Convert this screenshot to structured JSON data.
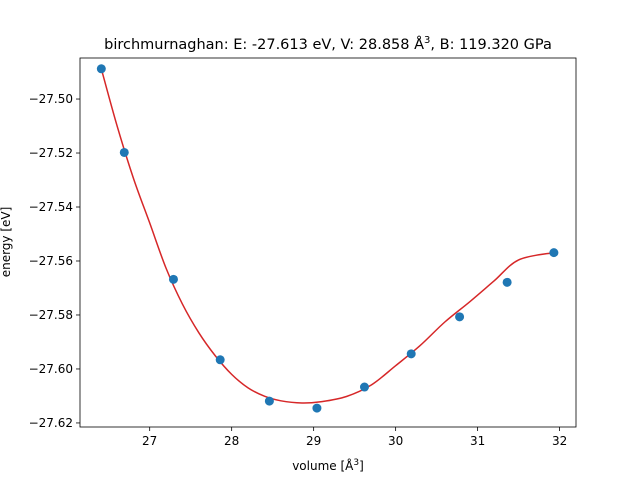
{
  "chart_data": {
    "type": "scatter",
    "title_parts": {
      "prefix": "birchmurnaghan: E: -27.613 eV, V: 28.858 Å",
      "superscript": "3",
      "suffix": ", B: 119.320 GPa"
    },
    "xlabel_parts": {
      "prefix": "volume [Å",
      "superscript": "3",
      "suffix": "]"
    },
    "ylabel": "energy [eV]",
    "xlim": [
      26.15,
      32.2
    ],
    "ylim": [
      -27.6215,
      -27.4848
    ],
    "x_ticks": [
      27,
      28,
      29,
      30,
      31,
      32
    ],
    "x_tick_labels": [
      "27",
      "28",
      "29",
      "30",
      "31",
      "32"
    ],
    "y_ticks": [
      -27.5,
      -27.52,
      -27.54,
      -27.56,
      -27.58,
      -27.6,
      -27.62
    ],
    "y_tick_labels": [
      "−27.50",
      "−27.52",
      "−27.54",
      "−27.56",
      "−27.58",
      "−27.60",
      "−27.62"
    ],
    "grid": false,
    "colors": {
      "points": "#1f77b4",
      "fit": "#d62728"
    },
    "series": [
      {
        "kind": "points",
        "x": [
          26.41,
          26.69,
          27.29,
          27.86,
          28.46,
          29.04,
          29.62,
          30.19,
          30.78,
          31.36,
          31.93
        ],
        "y": [
          -27.4888,
          -27.5198,
          -27.5668,
          -27.5966,
          -27.6119,
          -27.6145,
          -27.6067,
          -27.5944,
          -27.5807,
          -27.5679,
          -27.5569
        ]
      },
      {
        "kind": "fit",
        "x": [
          26.41,
          26.6,
          26.8,
          27.0,
          27.2,
          27.4,
          27.6,
          27.8,
          28.0,
          28.2,
          28.4,
          28.6,
          28.858,
          29.1,
          29.4,
          29.7,
          30.0,
          30.3,
          30.6,
          30.9,
          31.2,
          31.5,
          31.93
        ],
        "y": [
          -27.4888,
          -27.5097,
          -27.5292,
          -27.5459,
          -27.5627,
          -27.576,
          -27.5866,
          -27.5951,
          -27.602,
          -27.607,
          -27.6101,
          -27.6118,
          -27.6126,
          -27.6121,
          -27.6102,
          -27.606,
          -27.5988,
          -27.5913,
          -27.5826,
          -27.5752,
          -27.5674,
          -27.5596,
          -27.5569
        ]
      }
    ]
  }
}
